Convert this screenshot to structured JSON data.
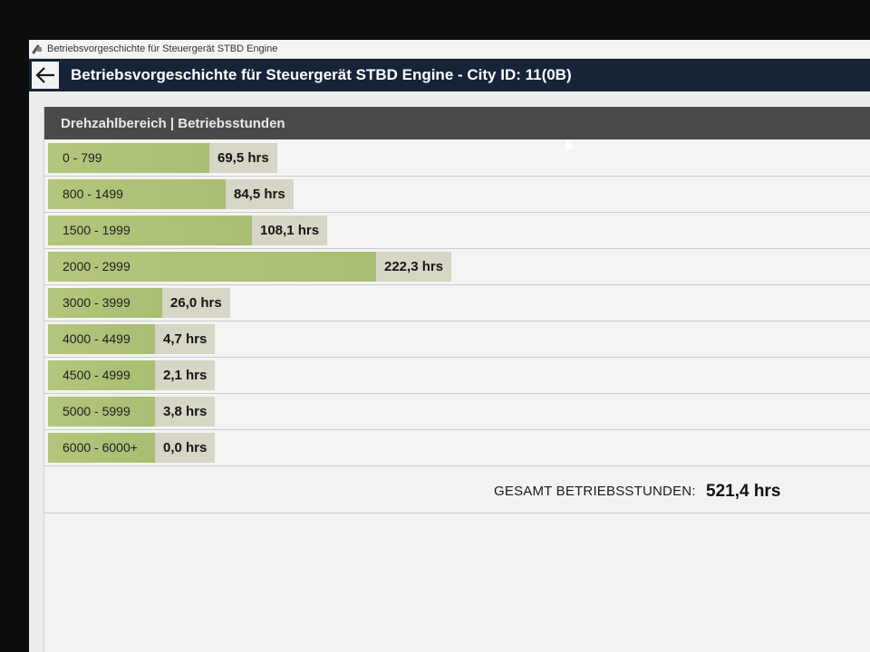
{
  "window": {
    "title": "Betriebsvorgeschichte für Steuergerät STBD Engine"
  },
  "header": {
    "title": "Betriebsvorgeschichte für Steuergerät STBD Engine - City ID: 11(0B)"
  },
  "table": {
    "column_header": "Drehzahlbereich | Betriebsstunden"
  },
  "rows": [
    {
      "range": "0 - 799",
      "hours": "69,5 hrs",
      "value": 69.5
    },
    {
      "range": "800 - 1499",
      "hours": "84,5 hrs",
      "value": 84.5
    },
    {
      "range": "1500 - 1999",
      "hours": "108,1 hrs",
      "value": 108.1
    },
    {
      "range": "2000 - 2999",
      "hours": "222,3 hrs",
      "value": 222.3
    },
    {
      "range": "3000 - 3999",
      "hours": "26,0 hrs",
      "value": 26.0
    },
    {
      "range": "4000 - 4499",
      "hours": "4,7 hrs",
      "value": 4.7
    },
    {
      "range": "4500 - 4999",
      "hours": "2,1 hrs",
      "value": 2.1
    },
    {
      "range": "5000 - 5999",
      "hours": "3,8 hrs",
      "value": 3.8
    },
    {
      "range": "6000 - 6000+",
      "hours": "0,0 hrs",
      "value": 0.0
    }
  ],
  "total": {
    "label": "GESAMT BETRIEBSSTUNDEN:",
    "value": "521,4 hrs"
  },
  "colors": {
    "header_bg": "#172337",
    "bar": "#b3c67c",
    "hours_box": "#d6d5c6",
    "column_header_bg": "#4a4a4a"
  },
  "icons": {
    "back": "arrow-left-icon",
    "app": "app-icon"
  }
}
